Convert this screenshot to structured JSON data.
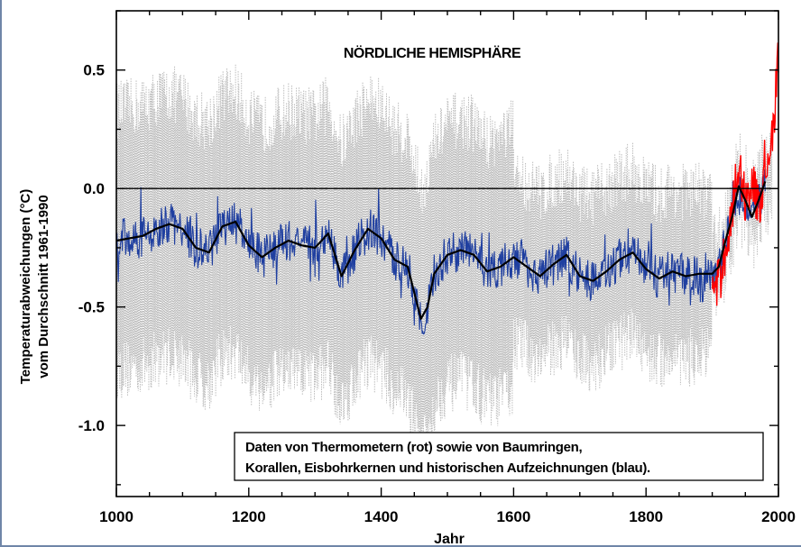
{
  "chart_data": {
    "type": "line",
    "title": "NÖRDLICHE HEMISPHÄRE",
    "xlabel": "Jahr",
    "ylabel_line1": "Temperaturabweichungen (°C)",
    "ylabel_line2": "vom Durchschnitt 1961-1990",
    "xlim": [
      1000,
      2000
    ],
    "ylim": [
      -1.3,
      0.75
    ],
    "x_ticks": [
      1000,
      1200,
      1400,
      1600,
      1800,
      2000
    ],
    "y_ticks": [
      0.5,
      0.0,
      -0.5,
      -1.0
    ],
    "y_tick_labels": [
      "0.5",
      "0.0",
      "-0.5",
      "-1.0"
    ],
    "zero_line": 0.0,
    "annotation": {
      "line1": "Daten von Thermometern (rot) sowie von Baumringen,",
      "line2": "Korallen, Eisbohrkernen und historischen Aufzeichnungen (blau)."
    },
    "series": [
      {
        "key": "proxy_smoothed",
        "color": "#000000",
        "x": [
          1000,
          1020,
          1040,
          1060,
          1080,
          1100,
          1120,
          1140,
          1160,
          1180,
          1200,
          1220,
          1240,
          1260,
          1280,
          1300,
          1320,
          1340,
          1360,
          1380,
          1400,
          1420,
          1440,
          1460,
          1470,
          1480,
          1500,
          1520,
          1540,
          1560,
          1580,
          1600,
          1620,
          1640,
          1660,
          1680,
          1700,
          1720,
          1740,
          1760,
          1780,
          1800,
          1820,
          1840,
          1860,
          1880,
          1900,
          1910,
          1920,
          1930,
          1940,
          1950,
          1960,
          1970,
          1980
        ],
        "y": [
          -0.22,
          -0.21,
          -0.2,
          -0.17,
          -0.15,
          -0.17,
          -0.25,
          -0.27,
          -0.16,
          -0.14,
          -0.24,
          -0.29,
          -0.25,
          -0.22,
          -0.24,
          -0.25,
          -0.19,
          -0.37,
          -0.26,
          -0.17,
          -0.21,
          -0.3,
          -0.33,
          -0.55,
          -0.5,
          -0.36,
          -0.28,
          -0.26,
          -0.28,
          -0.35,
          -0.33,
          -0.29,
          -0.33,
          -0.37,
          -0.32,
          -0.28,
          -0.37,
          -0.39,
          -0.35,
          -0.3,
          -0.27,
          -0.34,
          -0.38,
          -0.35,
          -0.37,
          -0.36,
          -0.36,
          -0.33,
          -0.22,
          -0.12,
          0.01,
          -0.05,
          -0.12,
          -0.05,
          0.03
        ]
      },
      {
        "key": "proxy_annual",
        "color": "#1f3fa0",
        "x_start": 1000,
        "x_end": 1980,
        "noise": 0.09
      },
      {
        "key": "thermometer",
        "color": "#ff0000",
        "x": [
          1900,
          1910,
          1920,
          1930,
          1940,
          1950,
          1960,
          1970,
          1975,
          1980,
          1985,
          1990,
          1995,
          1998,
          2000
        ],
        "y": [
          -0.45,
          -0.4,
          -0.25,
          -0.1,
          0.1,
          -0.05,
          0.05,
          -0.1,
          0.0,
          0.12,
          0.15,
          0.22,
          0.35,
          0.5,
          0.55
        ]
      },
      {
        "key": "uncertainty",
        "color": "#b5b5b5",
        "x_start": 1000,
        "x_end": 1990,
        "halfwidth_before_1600": 0.55,
        "halfwidth_after_1600": 0.35,
        "halfwidth_after_1900": 0.12
      }
    ]
  }
}
